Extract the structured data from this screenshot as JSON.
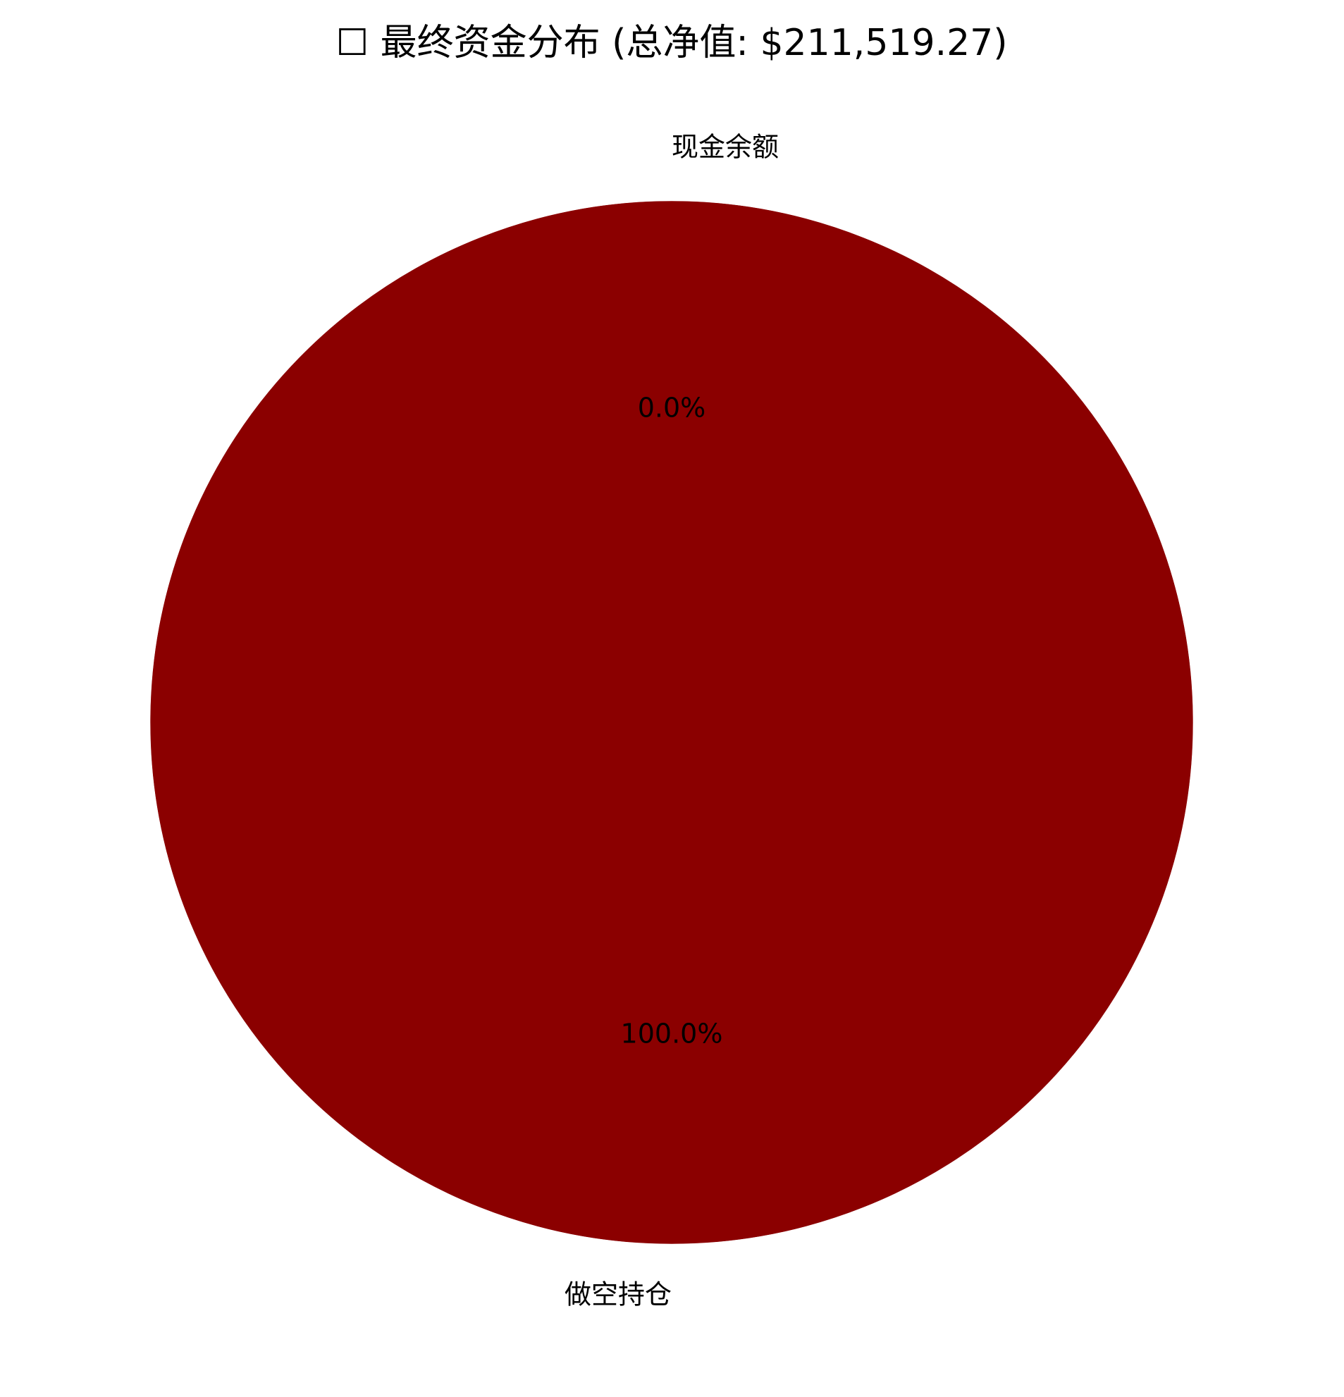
{
  "chart_data": {
    "type": "pie",
    "title": "☐ 最终资金分布 (总净值: $211,519.27)",
    "slices": [
      {
        "label": "现金余额",
        "value": 0.0,
        "pct_label": "0.0%",
        "color": "#8b0000"
      },
      {
        "label": "做空持仓",
        "value": 211519.27,
        "pct_label": "100.0%",
        "color": "#8b0000"
      }
    ],
    "start_angle": "top",
    "direction": "counterclockwise",
    "edge_color": "#ffffff"
  }
}
